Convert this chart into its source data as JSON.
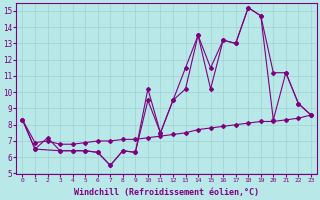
{
  "x_ticks": [
    0,
    1,
    2,
    3,
    4,
    5,
    6,
    7,
    8,
    9,
    10,
    11,
    12,
    13,
    14,
    15,
    16,
    17,
    18,
    19,
    20,
    21,
    22,
    23
  ],
  "line1_x": [
    0,
    1,
    2,
    3,
    4,
    5,
    6,
    7,
    8,
    9,
    10,
    11,
    12,
    13,
    14,
    15,
    16,
    17,
    18,
    19,
    20,
    21,
    22,
    23
  ],
  "line1_y": [
    8.3,
    6.5,
    7.2,
    6.4,
    6.4,
    6.4,
    6.3,
    5.5,
    6.4,
    6.3,
    10.2,
    7.5,
    9.5,
    11.5,
    13.5,
    10.2,
    13.2,
    13.0,
    15.2,
    14.7,
    8.3,
    11.2,
    9.3,
    8.6
  ],
  "line2_x": [
    0,
    1,
    3,
    4,
    5,
    6,
    7,
    8,
    9,
    10,
    11,
    12,
    13,
    14,
    15,
    16,
    17,
    18,
    19,
    20,
    21,
    22,
    23
  ],
  "line2_y": [
    8.3,
    6.5,
    6.4,
    6.4,
    6.4,
    6.3,
    5.5,
    6.4,
    6.3,
    9.5,
    7.5,
    9.5,
    10.2,
    13.5,
    11.5,
    13.2,
    13.0,
    15.2,
    14.7,
    11.2,
    11.2,
    9.3,
    8.6
  ],
  "line3_x": [
    0,
    1,
    2,
    3,
    4,
    5,
    6,
    7,
    8,
    9,
    10,
    11,
    12,
    13,
    14,
    15,
    16,
    17,
    18,
    19,
    20,
    21,
    22,
    23
  ],
  "line3_y": [
    8.3,
    6.9,
    7.0,
    6.8,
    6.8,
    6.9,
    7.0,
    7.0,
    7.1,
    7.1,
    7.2,
    7.3,
    7.4,
    7.5,
    7.7,
    7.8,
    7.9,
    8.0,
    8.1,
    8.2,
    8.2,
    8.3,
    8.4,
    8.6
  ],
  "xlim": [
    -0.5,
    23.5
  ],
  "ylim": [
    5,
    15.5
  ],
  "yticks": [
    5,
    6,
    7,
    8,
    9,
    10,
    11,
    12,
    13,
    14,
    15
  ],
  "xlabel": "Windchill (Refroidissement éolien,°C)",
  "line_color": "#800080",
  "bg_color": "#b8e8e8",
  "grid_color": "#a0d0d0"
}
